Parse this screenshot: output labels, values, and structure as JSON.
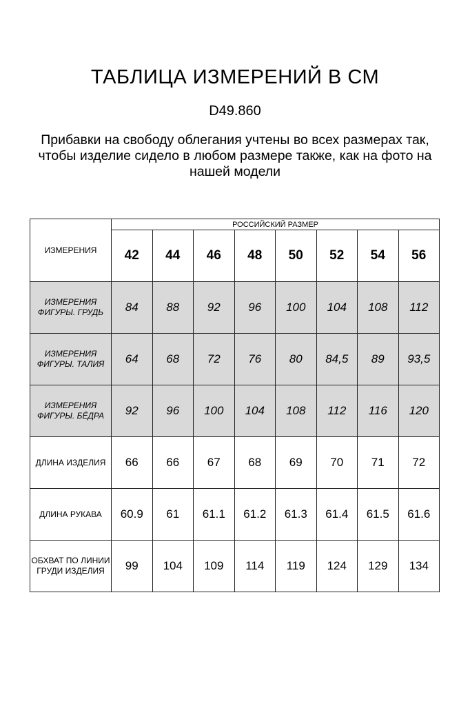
{
  "title": "ТАБЛИЦА ИЗМЕРЕНИЙ В СМ",
  "code": "D49.860",
  "note": "Прибавки на свободу облегания учтены во всех размерах так, чтобы изделие сидело в любом размере также, как на фото на нашей модели",
  "table": {
    "corner": "ИЗМЕРЕНИЯ",
    "group": "РОССИЙСКИЙ РАЗМЕР",
    "sizes": [
      "42",
      "44",
      "46",
      "48",
      "50",
      "52",
      "54",
      "56"
    ],
    "rows": [
      {
        "label": "ИЗМЕРЕНИЯ ФИГУРЫ. ГРУДЬ",
        "values": [
          "84",
          "88",
          "92",
          "96",
          "100",
          "104",
          "108",
          "112"
        ]
      },
      {
        "label": "ИЗМЕРЕНИЯ ФИГУРЫ. ТАЛИЯ",
        "values": [
          "64",
          "68",
          "72",
          "76",
          "80",
          "84,5",
          "89",
          "93,5"
        ]
      },
      {
        "label": "ИЗМЕРЕНИЯ ФИГУРЫ. БЁДРА",
        "values": [
          "92",
          "96",
          "100",
          "104",
          "108",
          "112",
          "116",
          "120"
        ]
      },
      {
        "label": "ДЛИНА ИЗДЕЛИЯ",
        "values": [
          "66",
          "66",
          "67",
          "68",
          "69",
          "70",
          "71",
          "72"
        ]
      },
      {
        "label": "ДЛИНА РУКАВА",
        "values": [
          "60.9",
          "61",
          "61.1",
          "61.2",
          "61.3",
          "61.4",
          "61.5",
          "61.6"
        ]
      },
      {
        "label": "ОБХВАТ ПО ЛИНИИ ГРУДИ ИЗДЕЛИЯ",
        "values": [
          "99",
          "104",
          "109",
          "114",
          "119",
          "124",
          "129",
          "134"
        ]
      }
    ]
  },
  "colors": {
    "shaded_row": "#d9d9d9"
  }
}
